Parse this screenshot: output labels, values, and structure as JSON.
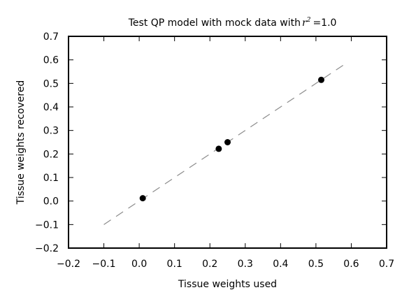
{
  "chart_data": {
    "type": "scatter",
    "title": "Test QP model with mock data with",
    "title_math": {
      "symbol": "r",
      "superscript": "2",
      "equals": "=",
      "value": "1.0"
    },
    "xlabel": "Tissue weights used",
    "ylabel": "Tissue weights recovered",
    "xlim": [
      -0.2,
      0.7
    ],
    "ylim": [
      -0.2,
      0.7
    ],
    "x_ticks": [
      -0.2,
      -0.1,
      0.0,
      0.1,
      0.2,
      0.3,
      0.4,
      0.5,
      0.6,
      0.7
    ],
    "x_tick_labels": [
      "−0.2",
      "−0.1",
      "0.0",
      "0.1",
      "0.2",
      "0.3",
      "0.4",
      "0.5",
      "0.6",
      "0.7"
    ],
    "y_ticks": [
      -0.2,
      -0.1,
      0.0,
      0.1,
      0.2,
      0.3,
      0.4,
      0.5,
      0.6,
      0.7
    ],
    "y_tick_labels": [
      "−0.2",
      "−0.1",
      "0.0",
      "0.1",
      "0.2",
      "0.3",
      "0.4",
      "0.5",
      "0.6",
      "0.7"
    ],
    "grid": false,
    "points": {
      "x": [
        0.01,
        0.225,
        0.25,
        0.515
      ],
      "y": [
        0.012,
        0.222,
        0.25,
        0.515
      ],
      "color": "#000000"
    },
    "reference_line": {
      "x": [
        -0.1,
        0.58
      ],
      "y": [
        -0.1,
        0.58
      ],
      "style": "dashed",
      "color": "#8c8c8c"
    }
  }
}
